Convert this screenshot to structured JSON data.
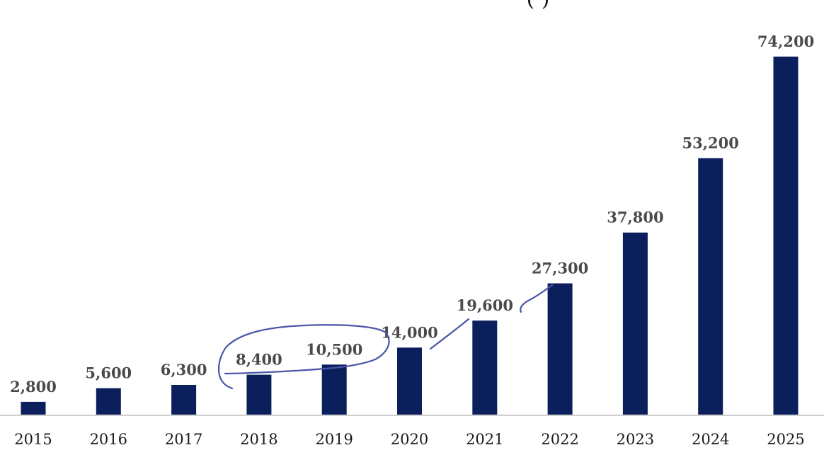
{
  "chart_data": {
    "type": "bar",
    "title_fragment": "(          )",
    "categories": [
      "2015",
      "2016",
      "2017",
      "2018",
      "2019",
      "2020",
      "2021",
      "2022",
      "2023",
      "2024",
      "2025"
    ],
    "values": [
      2800,
      5600,
      6300,
      8400,
      10500,
      14000,
      19600,
      27300,
      37800,
      53200,
      74200
    ],
    "data_labels": [
      "2,800",
      "5,600",
      "6,300",
      "8,400",
      "10,500",
      "14,000",
      "19,600",
      "27,300",
      "37,800",
      "53,200",
      "74,200"
    ],
    "xlabel": "",
    "ylabel": "",
    "ylim": [
      0,
      80000
    ],
    "grid": false,
    "legend": "none",
    "colors": {
      "bar": "#0b1f5c",
      "baseline": "#d0d0d0",
      "annotation": "#4a56a8"
    },
    "annotations": [
      "hand-drawn loop around 2018 and 2019 bars",
      "hand-drawn arrow from 2020 to 2021",
      "hand-drawn arrow from 2021 to 2022"
    ]
  }
}
